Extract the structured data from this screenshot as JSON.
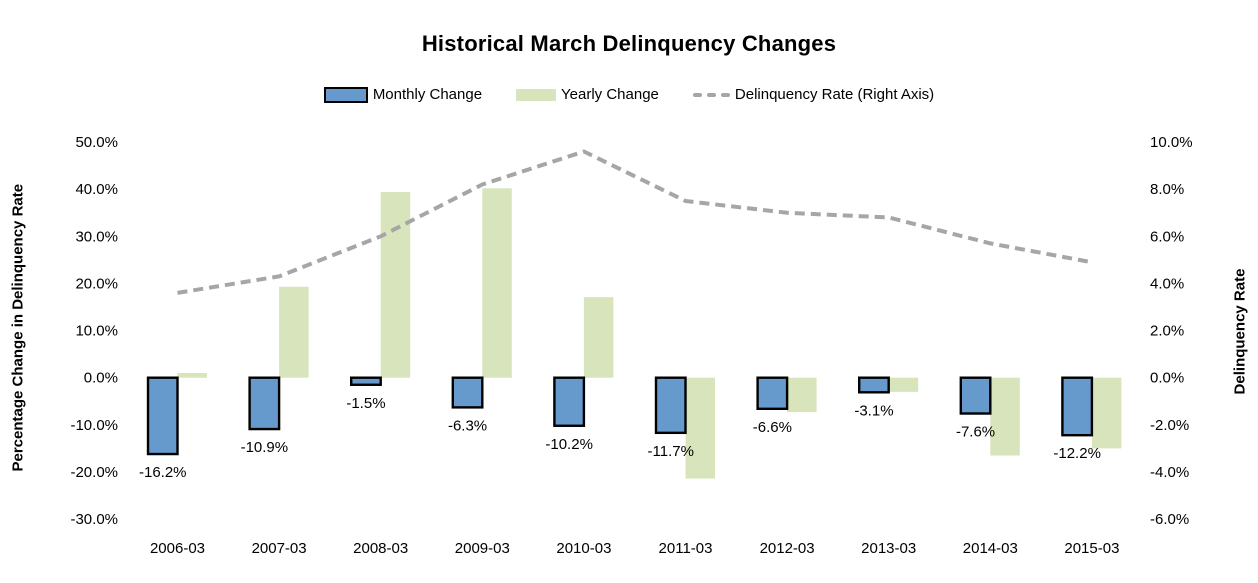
{
  "chart_data": {
    "type": "bar",
    "title": "Historical March Delinquency Changes",
    "categories": [
      "2006-03",
      "2007-03",
      "2008-03",
      "2009-03",
      "2010-03",
      "2011-03",
      "2012-03",
      "2013-03",
      "2014-03",
      "2015-03"
    ],
    "series": [
      {
        "name": "Monthly Change",
        "type": "bar",
        "axis": "left",
        "color": "#6699CC",
        "border_color": "#000000",
        "values": [
          -16.2,
          -10.9,
          -1.5,
          -6.3,
          -10.2,
          -11.7,
          -6.6,
          -3.1,
          -7.6,
          -12.2
        ],
        "data_labels": [
          "-16.2%",
          "-10.9%",
          "-1.5%",
          "-6.3%",
          "-10.2%",
          "-11.7%",
          "-6.6%",
          "-3.1%",
          "-7.6%",
          "-12.2%"
        ]
      },
      {
        "name": "Yearly Change",
        "type": "bar",
        "axis": "left",
        "color": "#D8E4BC",
        "values": [
          1.0,
          19.3,
          39.4,
          40.2,
          17.1,
          -21.4,
          -7.3,
          -3.0,
          -16.5,
          -15.0
        ]
      },
      {
        "name": "Delinquency Rate (Right Axis)",
        "type": "line",
        "axis": "right",
        "color": "#A6A6A6",
        "dashed": true,
        "values": [
          3.6,
          4.3,
          6.0,
          8.2,
          9.6,
          7.5,
          7.0,
          6.8,
          5.7,
          4.9
        ]
      }
    ],
    "left_axis": {
      "title": "Percentage Change in Delinquency Rate",
      "tick_labels": [
        "50.0%",
        "40.0%",
        "30.0%",
        "20.0%",
        "10.0%",
        "0.0%",
        "-10.0%",
        "-20.0%",
        "-30.0%"
      ],
      "tick_values": [
        50,
        40,
        30,
        20,
        10,
        0,
        -10,
        -20,
        -30
      ],
      "min": -30,
      "max": 50
    },
    "right_axis": {
      "title": "Delinquency Rate",
      "tick_labels": [
        "10.0%",
        "8.0%",
        "6.0%",
        "4.0%",
        "2.0%",
        "0.0%",
        "-2.0%",
        "-4.0%",
        "-6.0%"
      ],
      "tick_values": [
        10,
        8,
        6,
        4,
        2,
        0,
        -2,
        -4,
        -6
      ],
      "min": -6,
      "max": 10
    },
    "legend_position": "top",
    "grid": false,
    "background": "#FFFFFF"
  }
}
